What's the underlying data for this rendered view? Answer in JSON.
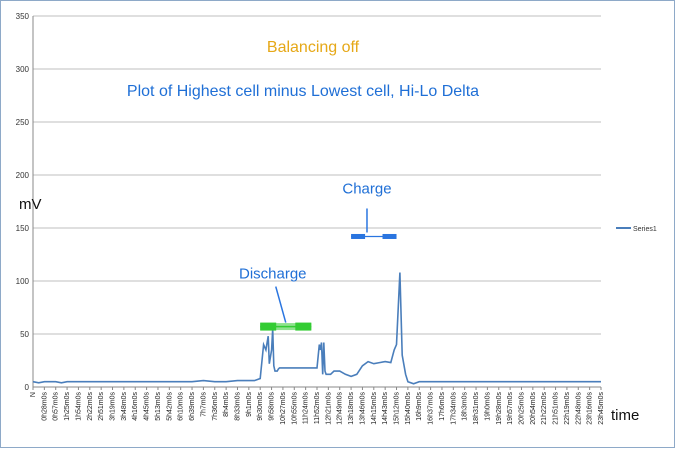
{
  "chart_data": {
    "type": "line",
    "title": "Balancing off",
    "subtitle": "Plot of Highest cell minus Lowest cell, Hi-Lo Delta",
    "ylabel": "mV",
    "xlabel": "time",
    "ylim": [
      0,
      350
    ],
    "yticks": [
      0,
      50,
      100,
      150,
      200,
      250,
      300,
      350
    ],
    "grid": "horizontal",
    "legend": "right",
    "colors": {
      "series": "#4a7ebb",
      "title": "#e6a817",
      "annotation": "#1f6fd6",
      "charge_bar": "#2a75e0",
      "discharge_bar": "#33cc33",
      "grid": "#bfbfbf"
    },
    "x_ticks": [
      "N",
      "0h28m0s",
      "0h57m0s",
      "1h25m0s",
      "1h54m0s",
      "2h22m0s",
      "2h51m0s",
      "3h19m0s",
      "3h48m0s",
      "4h16m0s",
      "4h45m0s",
      "5h13m0s",
      "5h42m0s",
      "6h10m0s",
      "6h39m0s",
      "7h7m0s",
      "7h36m0s",
      "8h4m0s",
      "8h33m0s",
      "9h1m0s",
      "9h30m0s",
      "9h58m0s",
      "10h27m0s",
      "10h55m0s",
      "11h24m0s",
      "11h52m0s",
      "12h21m0s",
      "12h49m0s",
      "13h18m0s",
      "13h46m0s",
      "14h15m0s",
      "14h43m0s",
      "15h12m0s",
      "15h40m0s",
      "16h9m0s",
      "16h37m0s",
      "17h6m0s",
      "17h34m0s",
      "18h3m0s",
      "18h31m0s",
      "19h0m0s",
      "19h28m0s",
      "19h57m0s",
      "20h25m0s",
      "20h54m0s",
      "21h22m0s",
      "21h51m0s",
      "22h19m0s",
      "22h48m0s",
      "23h16m0s",
      "23h45m0s"
    ],
    "series": [
      {
        "name": "Series1",
        "x": [
          0,
          0.5,
          1,
          1.5,
          2,
          2.5,
          3,
          4,
          5,
          6,
          7,
          8,
          9,
          10,
          11,
          12,
          13,
          14,
          15,
          16,
          17,
          18,
          19,
          19.5,
          20,
          20.3,
          20.5,
          20.7,
          20.8,
          21,
          21.1,
          21.2,
          21.3,
          21.5,
          21.6,
          21.7,
          21.8,
          22,
          22.5,
          23,
          24,
          24.5,
          25,
          25.2,
          25.3,
          25.4,
          25.5,
          25.6,
          25.7,
          25.8,
          26,
          26.2,
          26.5,
          27,
          27.5,
          28,
          28.5,
          29,
          29.5,
          30,
          30.5,
          31,
          31.5,
          31.8,
          32,
          32.3,
          32.5,
          32.8,
          33,
          33.5,
          34,
          35,
          36,
          37,
          38,
          39,
          40,
          41,
          42,
          43,
          44,
          45,
          46,
          47,
          48,
          49,
          50
        ],
        "y": [
          5,
          4,
          5,
          5,
          5,
          4,
          5,
          5,
          5,
          5,
          5,
          5,
          5,
          5,
          5,
          5,
          5,
          5,
          6,
          5,
          5,
          6,
          6,
          6,
          8,
          40,
          35,
          48,
          22,
          35,
          55,
          20,
          15,
          15,
          17,
          18,
          18,
          18,
          18,
          18,
          18,
          18,
          18,
          40,
          35,
          42,
          12,
          42,
          15,
          12,
          12,
          12,
          15,
          15,
          12,
          10,
          12,
          20,
          24,
          22,
          23,
          24,
          23,
          35,
          40,
          108,
          30,
          12,
          5,
          3,
          5,
          5,
          5,
          5,
          5,
          5,
          5,
          5,
          5,
          5,
          5,
          5,
          5,
          5,
          5,
          5,
          5
        ]
      }
    ],
    "annotations": [
      {
        "text": "Charge",
        "from_x": 28,
        "to_x": 32,
        "y": 142
      },
      {
        "text": "Discharge",
        "from_x": 20,
        "to_x": 24.5,
        "y": 57
      }
    ]
  }
}
